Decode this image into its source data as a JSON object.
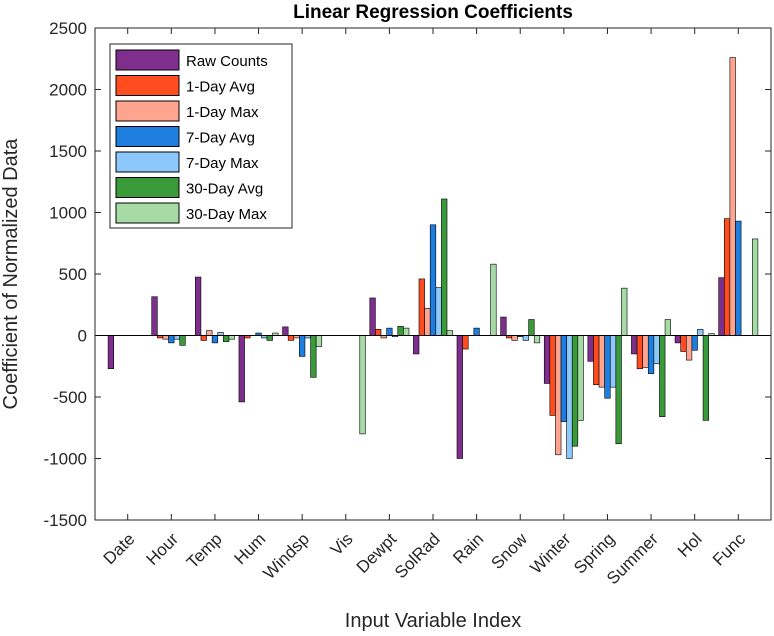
{
  "chart_data": {
    "type": "bar",
    "title": "Linear Regression Coefficients",
    "xlabel": "Input Variable Index",
    "ylabel": "Coefficient of Normalized Data",
    "ylim": [
      -1500,
      2500
    ],
    "yticks": [
      -1500,
      -1000,
      -500,
      0,
      500,
      1000,
      1500,
      2000,
      2500
    ],
    "grid": false,
    "legend_position": "top-left",
    "categories": [
      "Date",
      "Hour",
      "Temp",
      "Hum",
      "Windsp",
      "Vis",
      "Dewpt",
      "SolRad",
      "Rain",
      "Snow",
      "Winter",
      "Spring",
      "Summer",
      "Hol",
      "Func"
    ],
    "series": [
      {
        "name": "Raw Counts",
        "color": "#7E2F8E",
        "values": [
          -270,
          315,
          475,
          -540,
          70,
          0,
          305,
          -150,
          -1000,
          150,
          -390,
          -210,
          -150,
          -60,
          470
        ]
      },
      {
        "name": "1-Day Avg",
        "color": "#FF4D1F",
        "values": [
          0,
          -20,
          -40,
          -20,
          -40,
          0,
          50,
          460,
          -110,
          -20,
          -650,
          -400,
          -270,
          -130,
          950
        ]
      },
      {
        "name": "1-Day Max",
        "color": "#FFA58F",
        "values": [
          0,
          -30,
          40,
          0,
          -20,
          0,
          -20,
          220,
          0,
          -40,
          -970,
          -420,
          -260,
          -200,
          2260
        ]
      },
      {
        "name": "7-Day Avg",
        "color": "#1E7EE0",
        "values": [
          0,
          -60,
          -60,
          20,
          -170,
          0,
          60,
          900,
          60,
          -10,
          -700,
          -510,
          -310,
          -120,
          930
        ]
      },
      {
        "name": "7-Day Max",
        "color": "#8CC8FA",
        "values": [
          0,
          -30,
          25,
          -20,
          -20,
          0,
          -10,
          390,
          0,
          -40,
          -1000,
          -420,
          -230,
          50,
          0
        ]
      },
      {
        "name": "30-Day Avg",
        "color": "#3A9A3A",
        "values": [
          0,
          -80,
          -50,
          -40,
          -340,
          0,
          75,
          1110,
          0,
          130,
          -900,
          -880,
          -660,
          -690,
          0
        ]
      },
      {
        "name": "30-Day Max",
        "color": "#A6DBA6",
        "values": [
          0,
          0,
          -30,
          20,
          -90,
          -800,
          60,
          40,
          580,
          -60,
          -690,
          385,
          130,
          15,
          785
        ]
      }
    ]
  }
}
